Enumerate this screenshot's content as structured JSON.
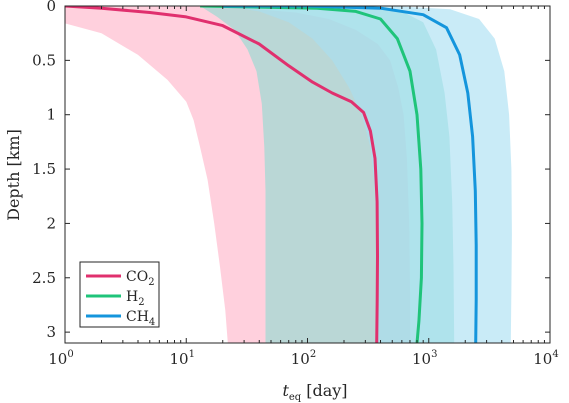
{
  "chart_data": {
    "type": "area",
    "xscale": "log",
    "xlim": [
      1,
      10000
    ],
    "ylim": [
      3.1,
      0
    ],
    "xlabel_main": "t",
    "xlabel_sub": "eq",
    "xlabel_unit": "[day]",
    "ylabel": "Depth [km]",
    "xticks": [
      {
        "base": "10",
        "exp": "0",
        "value": 1
      },
      {
        "base": "10",
        "exp": "1",
        "value": 10
      },
      {
        "base": "10",
        "exp": "2",
        "value": 100
      },
      {
        "base": "10",
        "exp": "3",
        "value": 1000
      },
      {
        "base": "10",
        "exp": "4",
        "value": 10000
      }
    ],
    "yticks": [
      "0",
      "0.5",
      "1",
      "1.5",
      "2",
      "2.5",
      "3"
    ],
    "series": [
      {
        "name": "CO",
        "sub": "2",
        "color": "#e0306e",
        "band_color": "#ffb3c8",
        "line": [
          [
            1,
            0
          ],
          [
            2,
            0.02
          ],
          [
            5,
            0.06
          ],
          [
            10,
            0.1
          ],
          [
            20,
            0.18
          ],
          [
            40,
            0.35
          ],
          [
            70,
            0.55
          ],
          [
            110,
            0.7
          ],
          [
            160,
            0.8
          ],
          [
            230,
            0.88
          ],
          [
            290,
            0.98
          ],
          [
            330,
            1.15
          ],
          [
            360,
            1.4
          ],
          [
            375,
            1.8
          ],
          [
            378,
            2.3
          ],
          [
            376,
            2.7
          ],
          [
            372,
            3.1
          ]
        ],
        "lower": [
          [
            1,
            0.02
          ],
          [
            1,
            0.16
          ],
          [
            2,
            0.25
          ],
          [
            4,
            0.45
          ],
          [
            7,
            0.68
          ],
          [
            10,
            0.88
          ],
          [
            11.5,
            1.05
          ],
          [
            13,
            1.3
          ],
          [
            15,
            1.6
          ],
          [
            17,
            2.0
          ],
          [
            19,
            2.4
          ],
          [
            21,
            2.8
          ],
          [
            22,
            3.1
          ]
        ],
        "upper": [
          [
            1,
            0
          ],
          [
            10,
            0
          ],
          [
            30,
            0.02
          ],
          [
            80,
            0.06
          ],
          [
            150,
            0.12
          ],
          [
            250,
            0.22
          ],
          [
            380,
            0.35
          ],
          [
            480,
            0.5
          ],
          [
            560,
            0.75
          ],
          [
            620,
            1.0
          ],
          [
            660,
            1.4
          ],
          [
            690,
            2.0
          ],
          [
            700,
            2.6
          ],
          [
            705,
            3.1
          ]
        ]
      },
      {
        "name": "H",
        "sub": "2",
        "color": "#1fc47a",
        "band_color": "#8fdcd2",
        "line": [
          [
            13,
            0
          ],
          [
            40,
            0.01
          ],
          [
            120,
            0.02
          ],
          [
            250,
            0.05
          ],
          [
            400,
            0.12
          ],
          [
            550,
            0.3
          ],
          [
            700,
            0.6
          ],
          [
            800,
            1.0
          ],
          [
            860,
            1.5
          ],
          [
            880,
            2.0
          ],
          [
            870,
            2.5
          ],
          [
            830,
            2.9
          ],
          [
            800,
            3.1
          ]
        ],
        "lower": [
          [
            13,
            0
          ],
          [
            18,
            0.1
          ],
          [
            25,
            0.22
          ],
          [
            32,
            0.4
          ],
          [
            38,
            0.6
          ],
          [
            42,
            0.9
          ],
          [
            44,
            1.3
          ],
          [
            45,
            1.7
          ],
          [
            45,
            2.2
          ],
          [
            45,
            2.7
          ],
          [
            45,
            3.1
          ]
        ],
        "upper": [
          [
            13,
            0
          ],
          [
            300,
            0
          ],
          [
            600,
            0.05
          ],
          [
            900,
            0.15
          ],
          [
            1150,
            0.4
          ],
          [
            1350,
            0.8
          ],
          [
            1480,
            1.2
          ],
          [
            1560,
            1.8
          ],
          [
            1600,
            2.4
          ],
          [
            1620,
            3.1
          ]
        ]
      },
      {
        "name": "CH",
        "sub": "4",
        "color": "#1495dc",
        "band_color": "#a8dff2",
        "line": [
          [
            20,
            0
          ],
          [
            100,
            0
          ],
          [
            400,
            0.02
          ],
          [
            900,
            0.08
          ],
          [
            1400,
            0.2
          ],
          [
            1800,
            0.45
          ],
          [
            2100,
            0.8
          ],
          [
            2300,
            1.2
          ],
          [
            2420,
            1.7
          ],
          [
            2460,
            2.2
          ],
          [
            2460,
            2.7
          ],
          [
            2440,
            3.1
          ]
        ],
        "lower": [
          [
            20,
            0
          ],
          [
            40,
            0.05
          ],
          [
            70,
            0.15
          ],
          [
            110,
            0.3
          ],
          [
            160,
            0.5
          ],
          [
            220,
            0.75
          ],
          [
            280,
            1.0
          ],
          [
            330,
            1.3
          ],
          [
            360,
            1.7
          ],
          [
            370,
            2.2
          ],
          [
            370,
            2.7
          ],
          [
            370,
            3.1
          ]
        ],
        "upper": [
          [
            20,
            0
          ],
          [
            500,
            0
          ],
          [
            1500,
            0.03
          ],
          [
            2600,
            0.12
          ],
          [
            3500,
            0.3
          ],
          [
            4200,
            0.6
          ],
          [
            4600,
            1.0
          ],
          [
            4800,
            1.5
          ],
          [
            4850,
            2.1
          ],
          [
            4800,
            2.6
          ],
          [
            4750,
            3.1
          ]
        ]
      }
    ],
    "legend_position": "bottom-left"
  }
}
